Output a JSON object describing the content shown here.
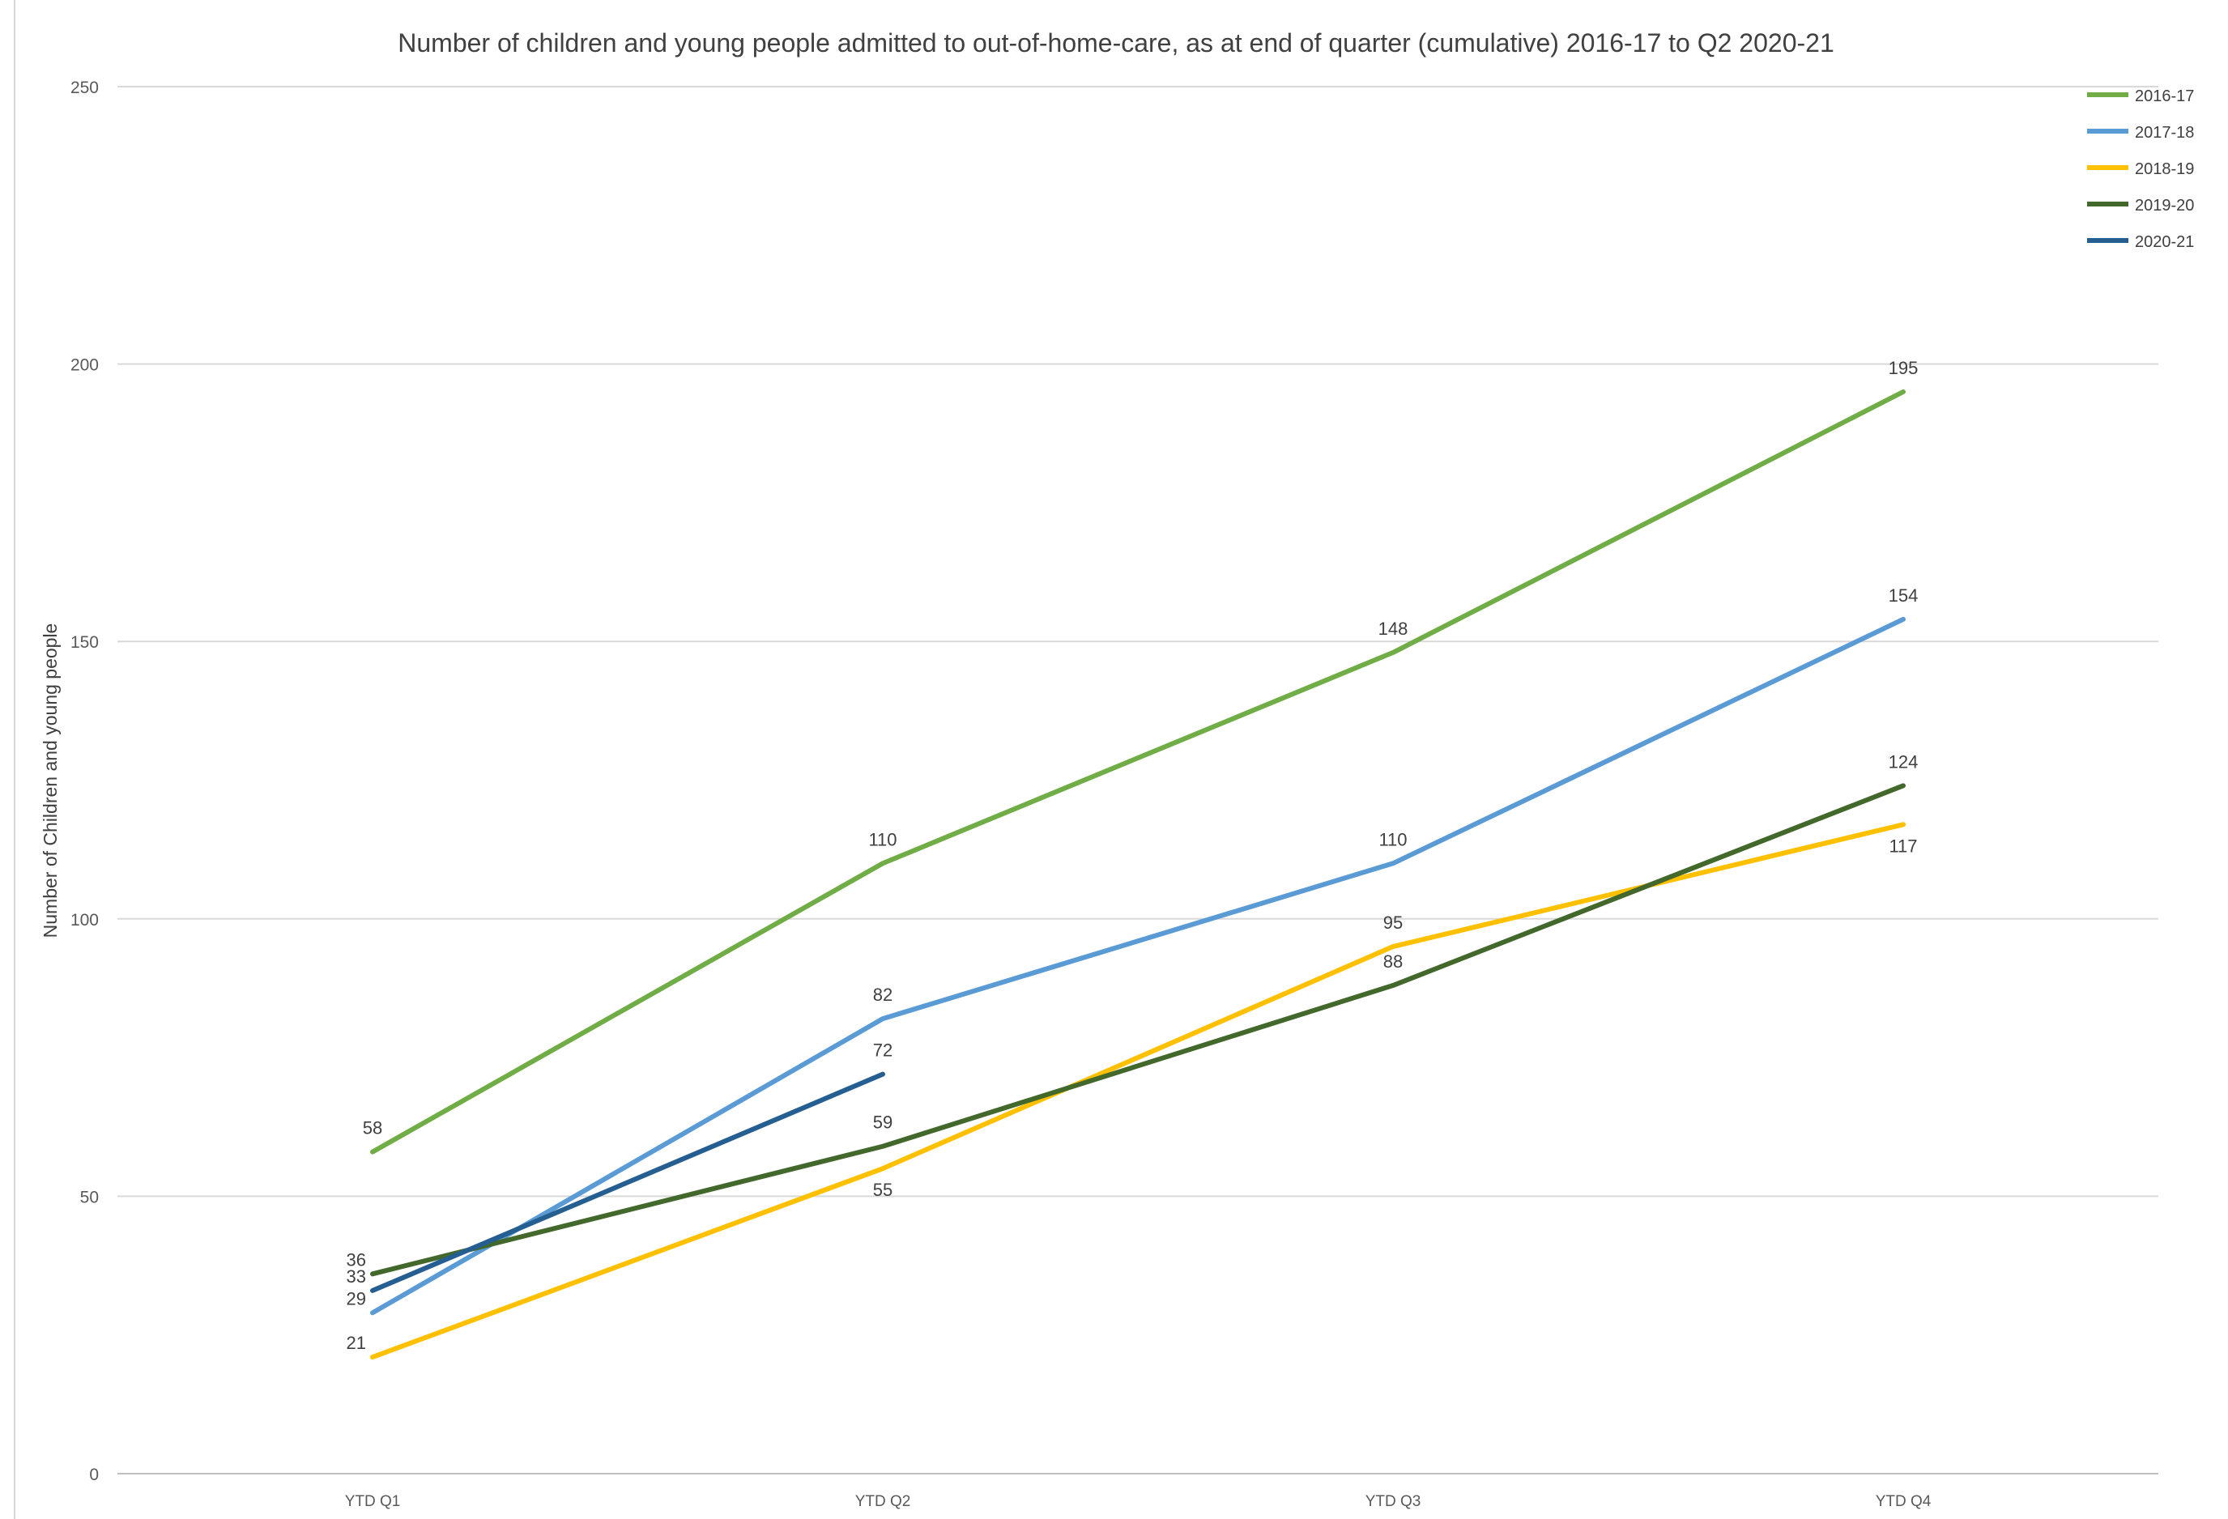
{
  "chart_data": {
    "type": "line",
    "title": "Number of children and young people admitted to out-of-home-care, as at end of quarter (cumulative) 2016-17 to Q2 2020-21",
    "xlabel": "",
    "ylabel": "Number of Children and young people",
    "categories": [
      "YTD Q1",
      "YTD Q2",
      "YTD Q3",
      "YTD Q4"
    ],
    "ylim": [
      0,
      250
    ],
    "yticks": [
      0,
      50,
      100,
      150,
      200,
      250
    ],
    "grid": true,
    "legend": "top-right",
    "series": [
      {
        "name": "2016-17",
        "color": "#70AD47",
        "values": [
          58,
          110,
          148,
          195
        ],
        "label_pos": [
          "above",
          "above",
          "above",
          "above"
        ]
      },
      {
        "name": "2017-18",
        "color": "#5B9BD5",
        "values": [
          29,
          82,
          110,
          154
        ],
        "label_pos": [
          "left",
          "above",
          "above",
          "above"
        ]
      },
      {
        "name": "2018-19",
        "color": "#FFC000",
        "values": [
          21,
          55,
          95,
          117
        ],
        "label_pos": [
          "left",
          "below",
          "above",
          "below"
        ]
      },
      {
        "name": "2019-20",
        "color": "#43682B",
        "values": [
          36,
          59,
          88,
          124
        ],
        "label_pos": [
          "left",
          "above",
          "above",
          "above"
        ]
      },
      {
        "name": "2020-21",
        "color": "#255E91",
        "values": [
          33,
          72,
          null,
          null
        ],
        "label_pos": [
          "left",
          "above",
          "",
          ""
        ]
      }
    ]
  }
}
